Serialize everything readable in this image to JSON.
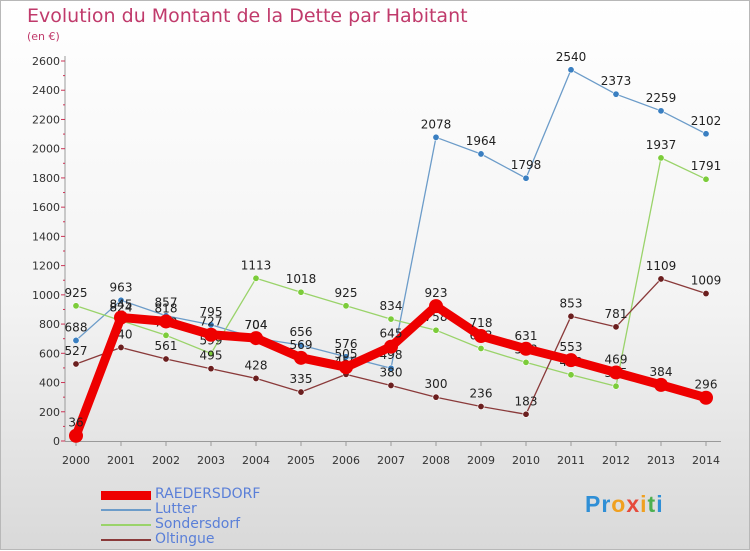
{
  "header": {
    "title": "Evolution du Montant de la Dette par Habitant",
    "unit": "(en €)"
  },
  "logo": {
    "text": "Proxiti"
  },
  "chart_data": {
    "type": "line",
    "title": "Evolution du Montant de la Dette par Habitant",
    "ylabel": "(en €)",
    "ylim": [
      0,
      2600
    ],
    "yticks": [
      0,
      200,
      400,
      600,
      800,
      1000,
      1200,
      1400,
      1600,
      1800,
      2000,
      2200,
      2400,
      2600
    ],
    "x": [
      "2000",
      "2001",
      "2002",
      "2003",
      "2004",
      "2005",
      "2006",
      "2007",
      "2008",
      "2009",
      "2010",
      "2011",
      "2012",
      "2013",
      "2014"
    ],
    "grid": false,
    "legend_position": "bottom-left",
    "series": [
      {
        "name": "Lutter",
        "color": "#6c9cc9",
        "marker": "#3a7fc1",
        "values": [
          688,
          963,
          857,
          795,
          704,
          656,
          576,
          498,
          2078,
          1964,
          1798,
          2540,
          2373,
          2259,
          2102
        ],
        "labels": [
          "688",
          "963",
          "857",
          "795",
          "704",
          "656",
          "576",
          "498",
          "2078",
          "1964",
          "1798",
          "2540",
          "2373",
          "2259",
          "2102"
        ]
      },
      {
        "name": "Sondersdorf",
        "color": "#9ad36a",
        "marker": "#7ccc3a",
        "values": [
          925,
          824,
          723,
          599,
          1113,
          1018,
          925,
          834,
          758,
          633,
          538,
          453,
          375,
          1937,
          1791
        ],
        "labels": [
          "925",
          "824",
          "723",
          "599",
          "1113",
          "1018",
          "925",
          "834",
          "758",
          "633",
          "538",
          "453",
          "375",
          "1937",
          "1791"
        ]
      },
      {
        "name": "Oltingue",
        "color": "#8a3a3a",
        "marker": "#6b1f1f",
        "values": [
          527,
          640,
          561,
          495,
          428,
          335,
          456,
          380,
          300,
          236,
          183,
          853,
          781,
          1109,
          1009
        ],
        "labels": [
          "527",
          "640",
          "561",
          "495",
          "428",
          "335",
          "456",
          "380",
          "300",
          "236",
          "183",
          "853",
          "781",
          "1109",
          "1009"
        ]
      },
      {
        "name": "RAEDERSDORF",
        "color": "#ee0000",
        "marker": "#ee0000",
        "values": [
          36,
          845,
          818,
          727,
          704,
          569,
          505,
          645,
          923,
          718,
          631,
          553,
          469,
          384,
          296
        ],
        "labels": [
          "36",
          "845",
          "818",
          "727",
          "704",
          "569",
          "505",
          "645",
          "923",
          "718",
          "631",
          "553",
          "469",
          "384",
          "296"
        ]
      }
    ]
  }
}
